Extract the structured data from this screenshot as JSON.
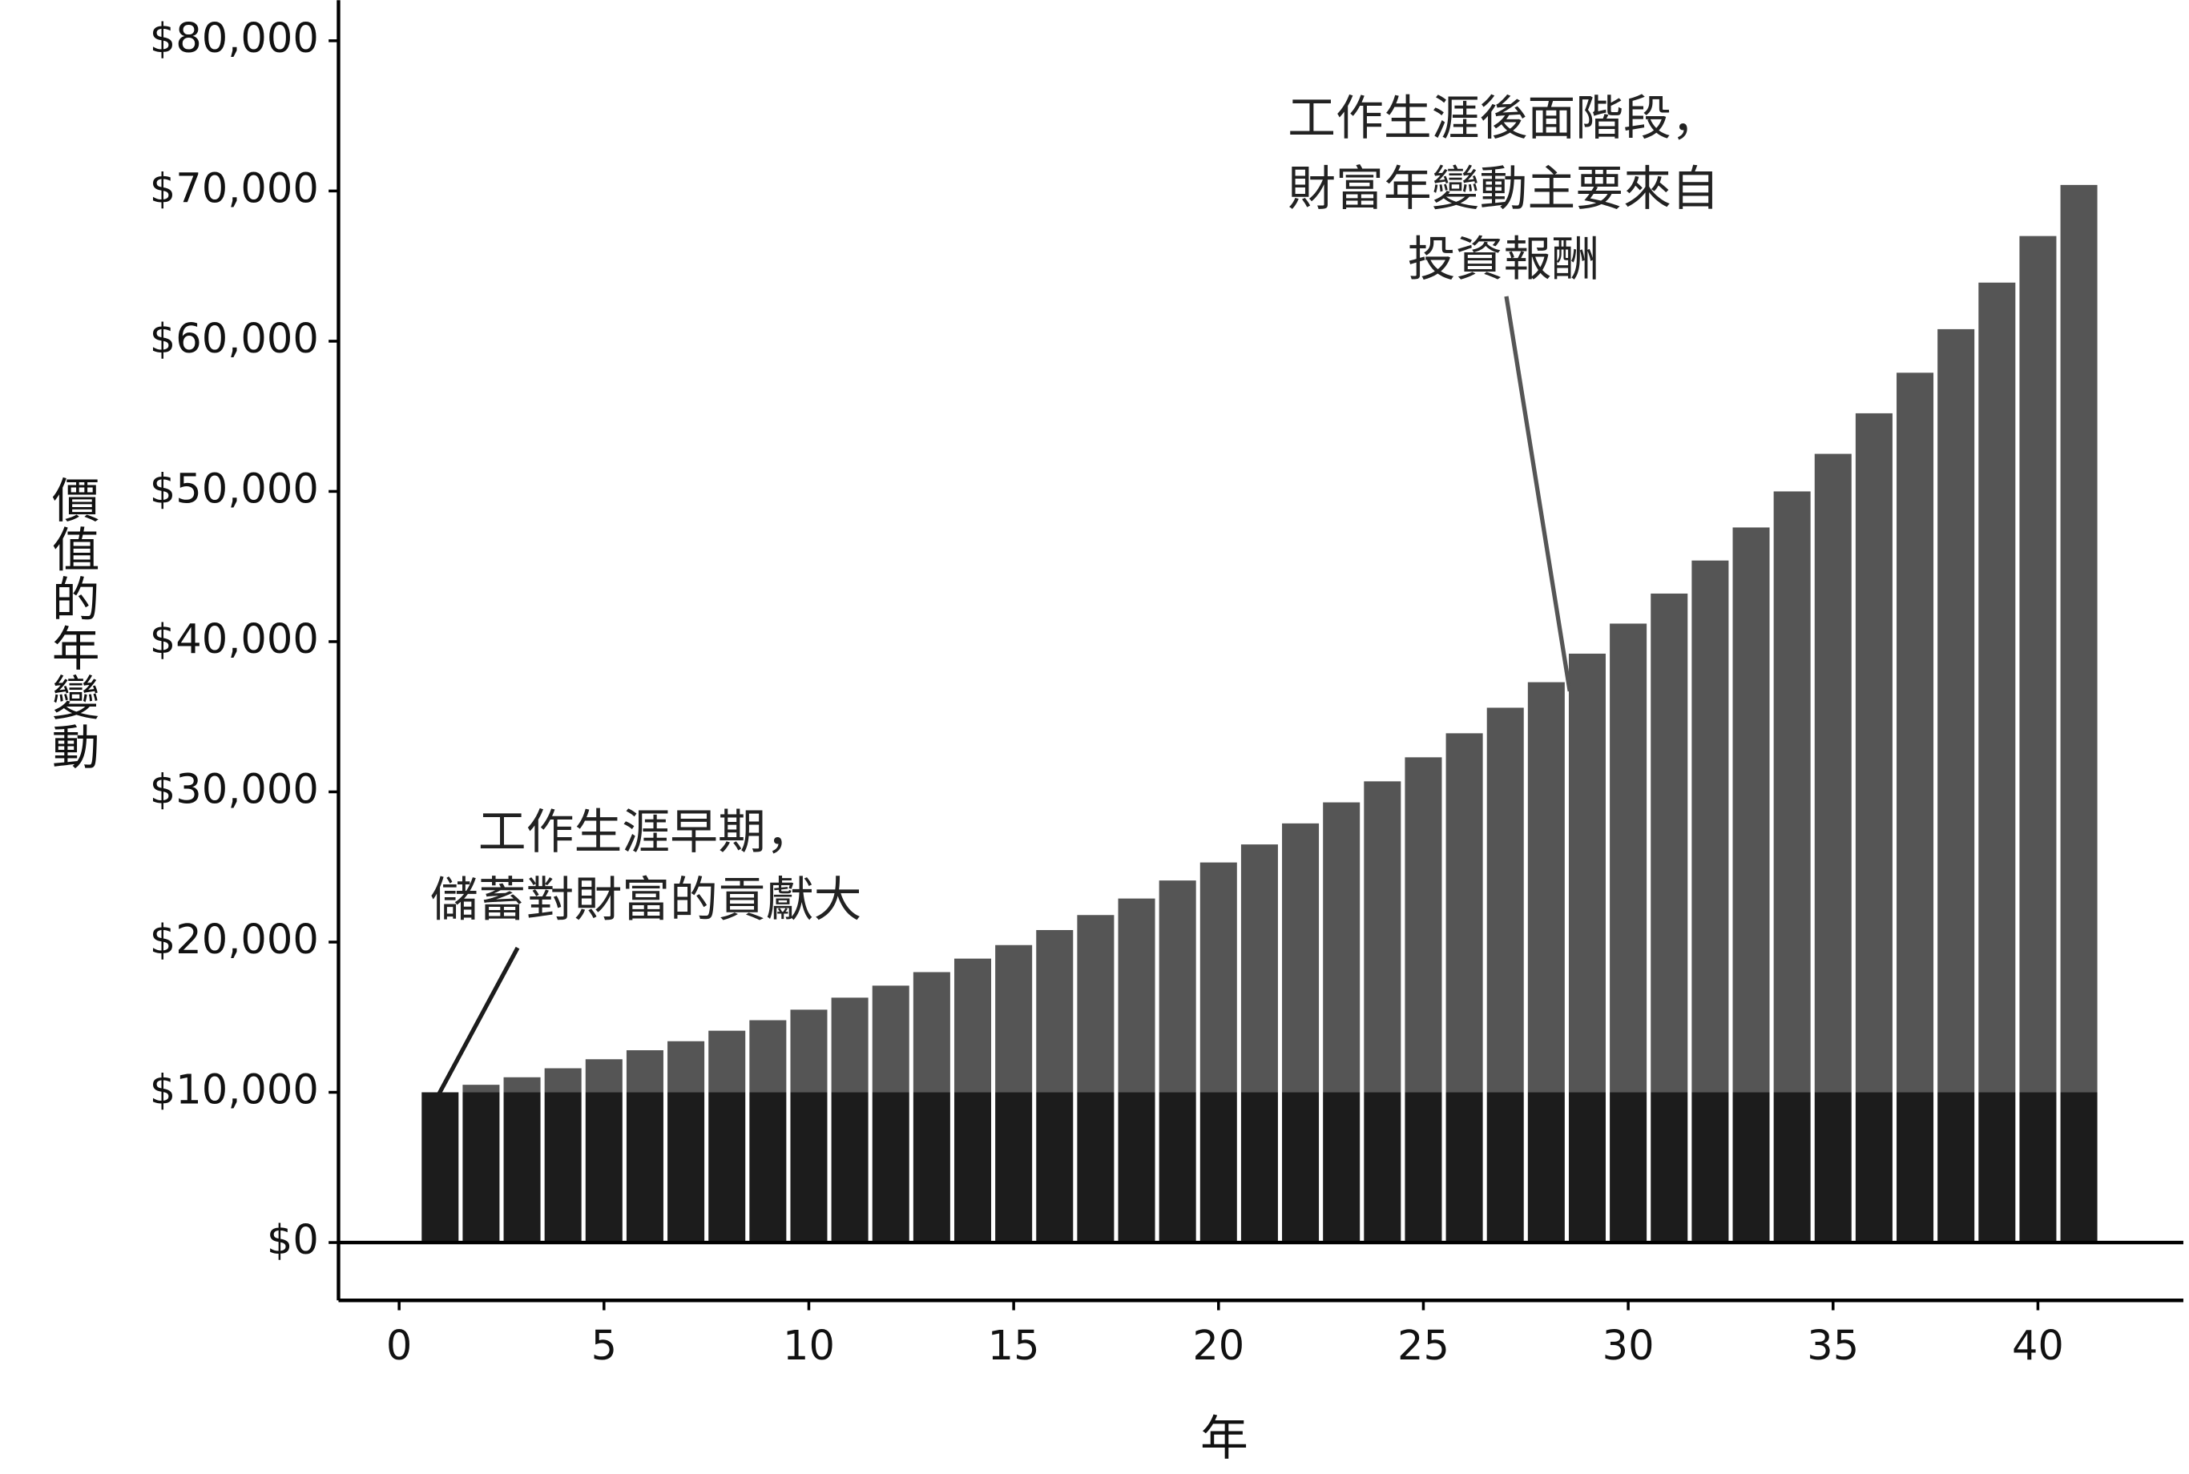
{
  "chart_data": {
    "type": "stacked_bar",
    "x_label": "年",
    "y_label": "價值的年變動",
    "x": [
      1,
      2,
      3,
      4,
      5,
      6,
      7,
      8,
      9,
      10,
      11,
      12,
      13,
      14,
      15,
      16,
      17,
      18,
      19,
      20,
      21,
      22,
      23,
      24,
      25,
      26,
      27,
      28,
      29,
      30,
      31,
      32,
      33,
      34,
      35,
      36,
      37,
      38,
      39,
      40,
      41
    ],
    "series": [
      {
        "color": "#1c1c1c",
        "values": [
          10000,
          10000,
          10000,
          10000,
          10000,
          10000,
          10000,
          10000,
          10000,
          10000,
          10000,
          10000,
          10000,
          10000,
          10000,
          10000,
          10000,
          10000,
          10000,
          10000,
          10000,
          10000,
          10000,
          10000,
          10000,
          10000,
          10000,
          10000,
          10000,
          10000,
          10000,
          10000,
          10000,
          10000,
          10000,
          10000,
          10000,
          10000,
          10000,
          10000,
          10000
        ]
      },
      {
        "color": "#555555",
        "values": [
          0,
          500,
          1000,
          1600,
          2200,
          2800,
          3400,
          4100,
          4800,
          5500,
          6300,
          7100,
          8000,
          8900,
          9800,
          10800,
          11800,
          12900,
          14100,
          15300,
          16500,
          17900,
          19300,
          20700,
          22300,
          23900,
          25600,
          27300,
          29200,
          31200,
          33200,
          35400,
          37600,
          40000,
          42500,
          45200,
          47900,
          50800,
          53900,
          57000,
          60400
        ]
      }
    ],
    "xlim": [
      -1.48,
      43.55
    ],
    "ylim": [
      -3850,
      82700
    ],
    "xticks": [
      0,
      5,
      10,
      15,
      20,
      25,
      30,
      35,
      40
    ],
    "yticks": [
      {
        "value": 0,
        "label": "$0"
      },
      {
        "value": 10000,
        "label": "$10,000"
      },
      {
        "value": 20000,
        "label": "$20,000"
      },
      {
        "value": 30000,
        "label": "$30,000"
      },
      {
        "value": 40000,
        "label": "$40,000"
      },
      {
        "value": 50000,
        "label": "$50,000"
      },
      {
        "value": 60000,
        "label": "$60,000"
      },
      {
        "value": 70000,
        "label": "$70,000"
      },
      {
        "value": 80000,
        "label": "$80,000"
      }
    ],
    "annotations": [
      {
        "lines": [
          "工作生涯早期，",
          "儲蓄對財富的貢獻大"
        ]
      },
      {
        "lines": [
          "工作生涯後面階段，",
          "財富年變動主要來自",
          "投資報酬"
        ]
      }
    ]
  }
}
